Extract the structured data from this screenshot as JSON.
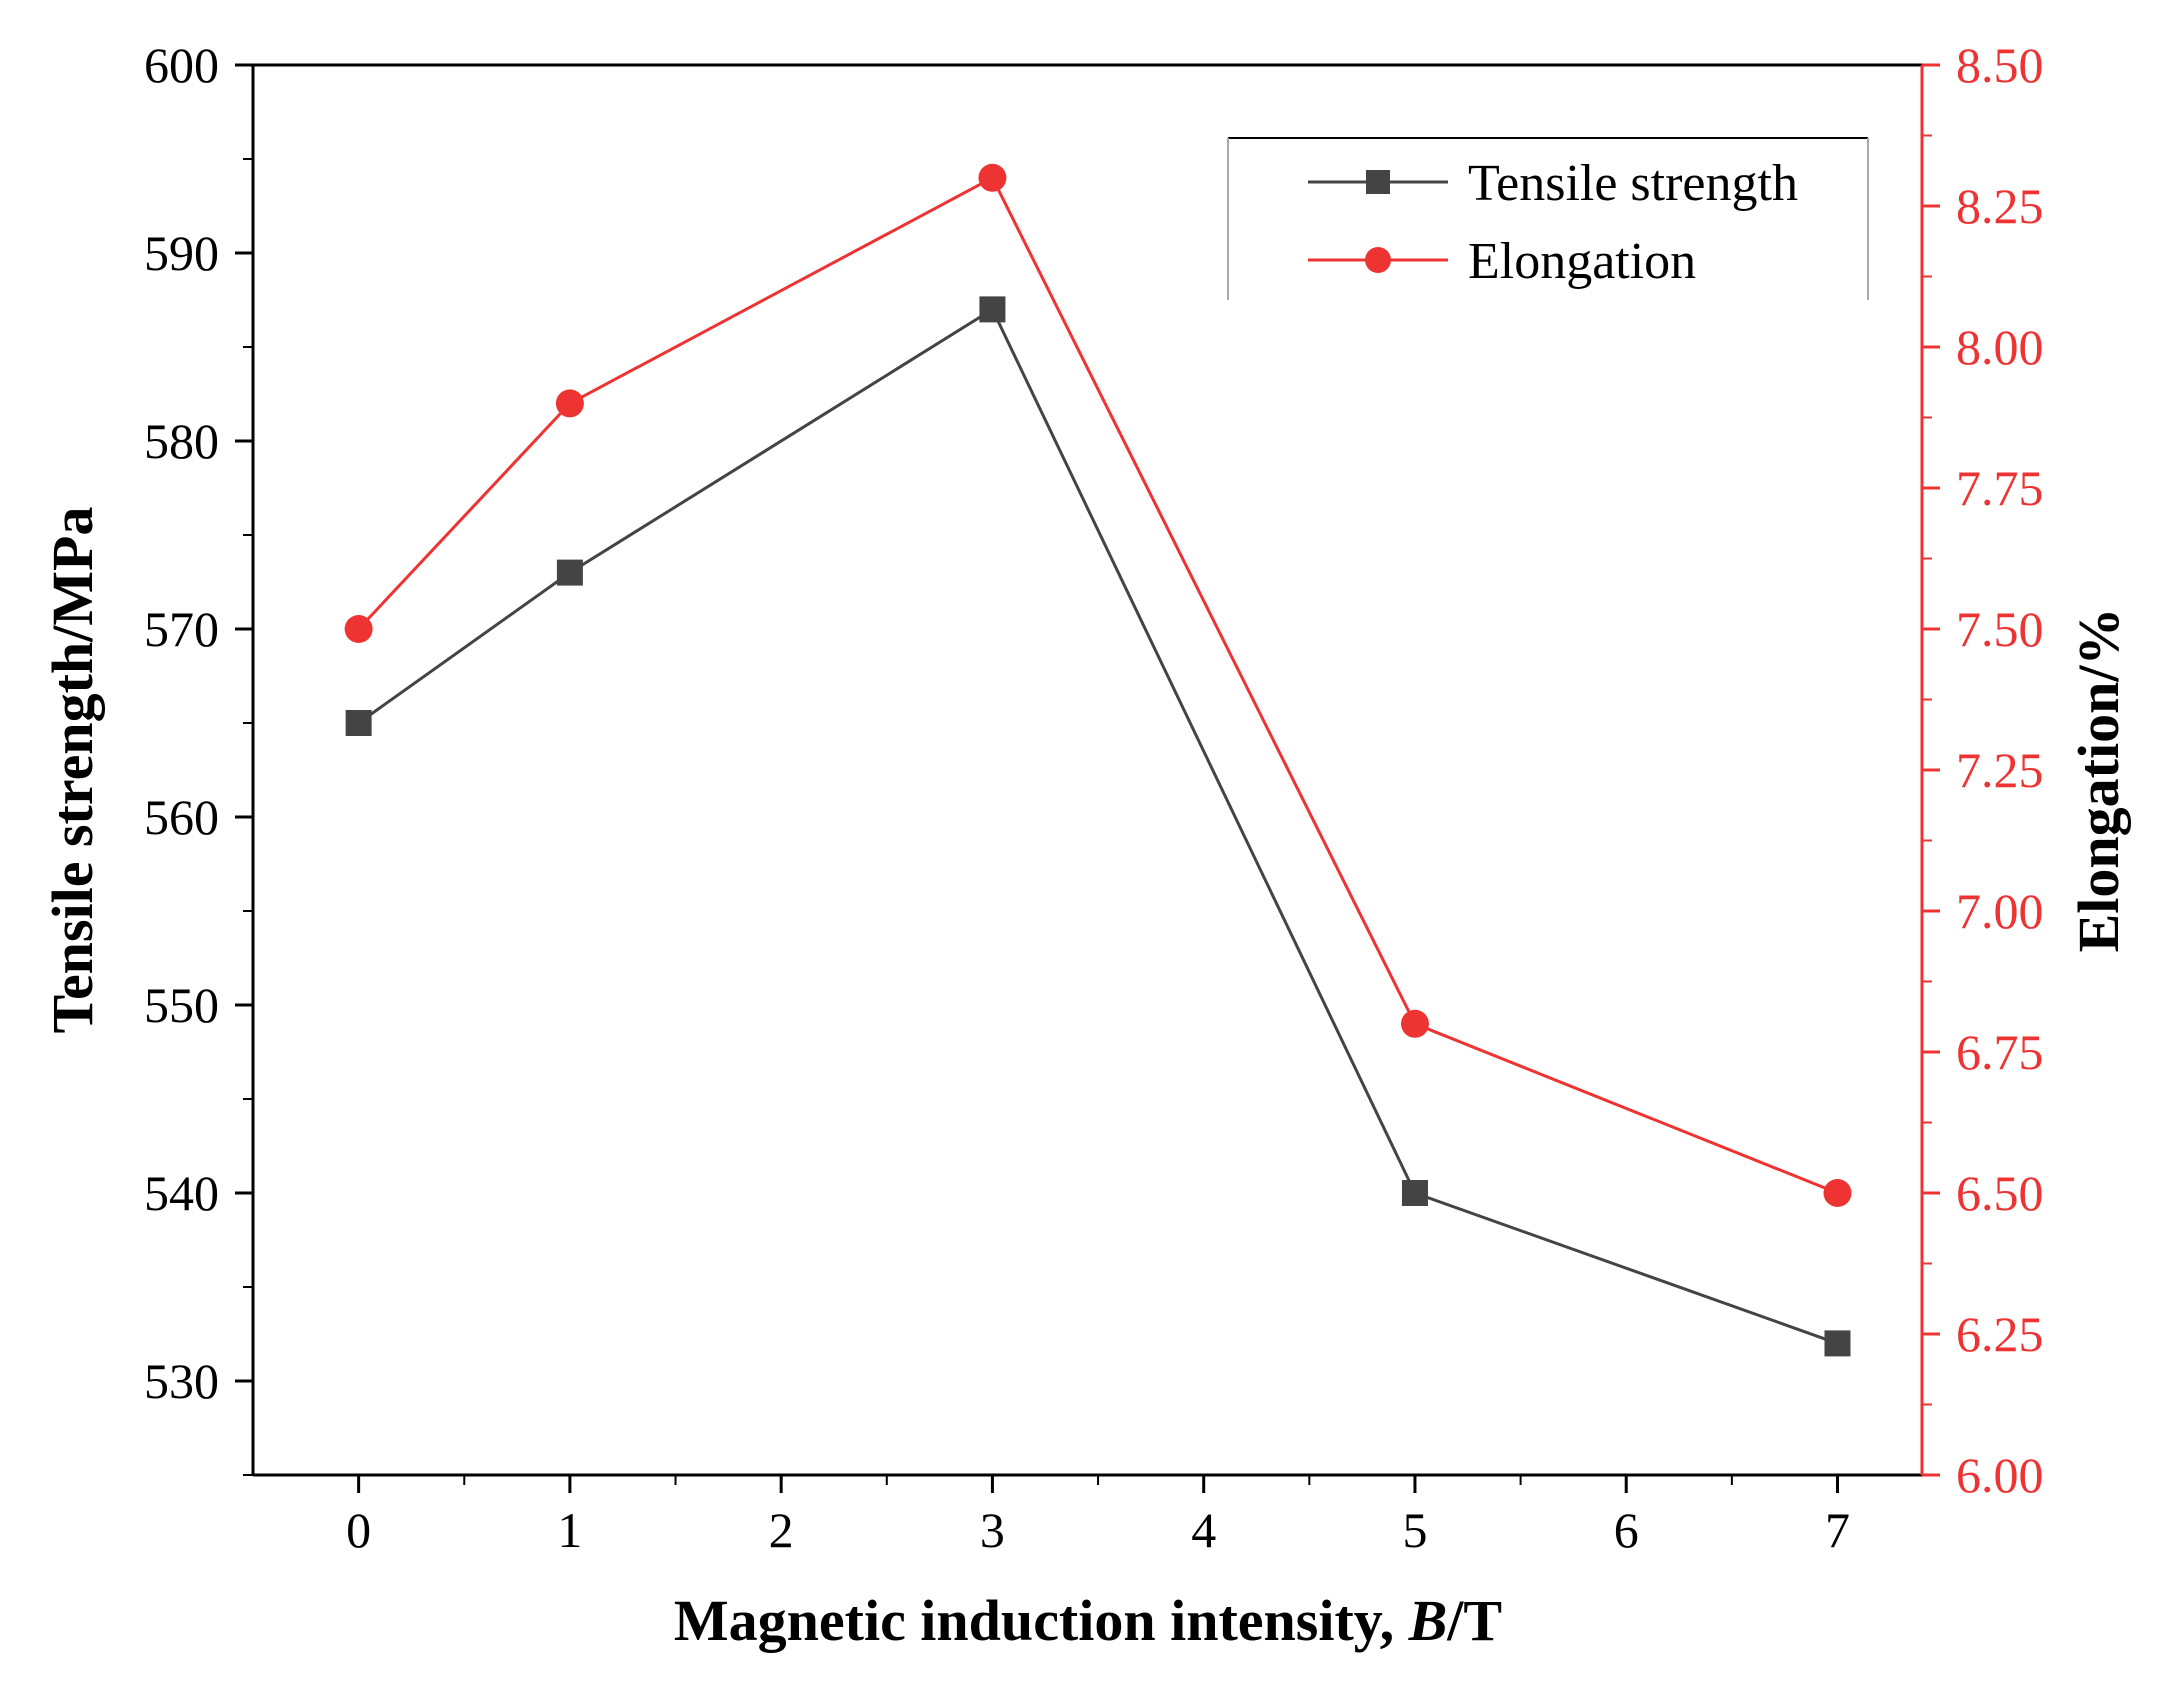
{
  "chart_data": {
    "type": "line",
    "x_label_text": "Magnetic induction intensity, ",
    "x_label_italic": "B",
    "x_label_unit": "/T",
    "y_left_label": "Tensile strength/MPa",
    "y_right_label": "Elongation/%",
    "x": [
      0,
      1,
      3,
      5,
      7
    ],
    "x_ticks": [
      "0",
      "1",
      "2",
      "3",
      "4",
      "5",
      "6",
      "7"
    ],
    "xlim": [
      -0.5,
      7.4
    ],
    "y_left_ticks": [
      "530",
      "540",
      "550",
      "560",
      "570",
      "580",
      "590",
      "600"
    ],
    "ylim_left": [
      525,
      600
    ],
    "y_right_ticks": [
      "6.00",
      "6.25",
      "6.50",
      "6.75",
      "7.00",
      "7.25",
      "7.50",
      "7.75",
      "8.00",
      "8.25",
      "8.50"
    ],
    "ylim_right": [
      6.0,
      8.5
    ],
    "series": [
      {
        "name": "Tensile strength",
        "axis": "left",
        "marker": "square",
        "color": "#444444",
        "values": [
          565,
          573,
          587,
          540,
          532
        ]
      },
      {
        "name": "Elongation",
        "axis": "right",
        "marker": "circle",
        "color": "#ee3333",
        "values": [
          7.5,
          7.9,
          8.3,
          6.8,
          6.5
        ]
      }
    ],
    "legend_position": "top-right"
  }
}
